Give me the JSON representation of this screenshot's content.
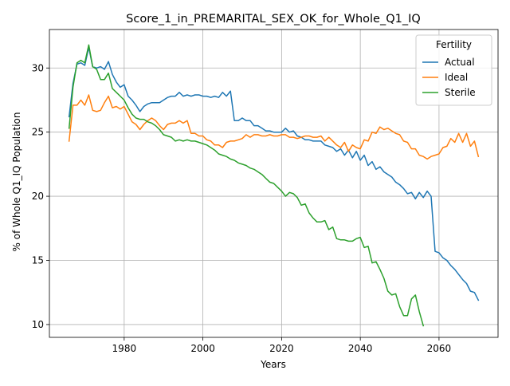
{
  "chart_data": {
    "type": "line",
    "title": "Score_1_in_PREMARITAL_SEX_OK_for_Whole_Q1_IQ",
    "xlabel": "Years",
    "ylabel": "% of Whole Q1_IQ Population",
    "xlim": [
      1961,
      2075
    ],
    "ylim": [
      9,
      33
    ],
    "xticks": [
      1980,
      2000,
      2020,
      2040,
      2060
    ],
    "yticks": [
      10,
      15,
      20,
      25,
      30
    ],
    "grid": true,
    "legend": {
      "title": "Fertility",
      "placement": "top-right"
    },
    "series": [
      {
        "name": "Actual",
        "color": "#1f77b4",
        "points": [
          [
            1966,
            26.2
          ],
          [
            1967,
            28.8
          ],
          [
            1968,
            30.3
          ],
          [
            1969,
            30.4
          ],
          [
            1970,
            30.2
          ],
          [
            1971,
            31.6
          ],
          [
            1972,
            30.1
          ],
          [
            1973,
            30.0
          ],
          [
            1974,
            30.1
          ],
          [
            1975,
            29.9
          ],
          [
            1976,
            30.5
          ],
          [
            1977,
            29.5
          ],
          [
            1978,
            28.9
          ],
          [
            1979,
            28.5
          ],
          [
            1980,
            28.7
          ],
          [
            1981,
            27.8
          ],
          [
            1982,
            27.5
          ],
          [
            1983,
            27.1
          ],
          [
            1984,
            26.6
          ],
          [
            1985,
            27.0
          ],
          [
            1986,
            27.2
          ],
          [
            1987,
            27.3
          ],
          [
            1988,
            27.3
          ],
          [
            1989,
            27.3
          ],
          [
            1990,
            27.5
          ],
          [
            1991,
            27.7
          ],
          [
            1992,
            27.8
          ],
          [
            1993,
            27.8
          ],
          [
            1994,
            28.1
          ],
          [
            1995,
            27.8
          ],
          [
            1996,
            27.9
          ],
          [
            1997,
            27.8
          ],
          [
            1998,
            27.9
          ],
          [
            1999,
            27.9
          ],
          [
            2000,
            27.8
          ],
          [
            2001,
            27.8
          ],
          [
            2002,
            27.7
          ],
          [
            2003,
            27.8
          ],
          [
            2004,
            27.7
          ],
          [
            2005,
            28.1
          ],
          [
            2006,
            27.8
          ],
          [
            2007,
            28.2
          ],
          [
            2008,
            25.9
          ],
          [
            2009,
            25.9
          ],
          [
            2010,
            26.1
          ],
          [
            2011,
            25.9
          ],
          [
            2012,
            25.9
          ],
          [
            2013,
            25.5
          ],
          [
            2014,
            25.5
          ],
          [
            2015,
            25.3
          ],
          [
            2016,
            25.1
          ],
          [
            2017,
            25.1
          ],
          [
            2018,
            25.0
          ],
          [
            2019,
            25.0
          ],
          [
            2020,
            25.0
          ],
          [
            2021,
            25.3
          ],
          [
            2022,
            25.0
          ],
          [
            2023,
            25.1
          ],
          [
            2024,
            24.7
          ],
          [
            2025,
            24.6
          ],
          [
            2026,
            24.4
          ],
          [
            2027,
            24.4
          ],
          [
            2028,
            24.3
          ],
          [
            2029,
            24.3
          ],
          [
            2030,
            24.3
          ],
          [
            2031,
            24.0
          ],
          [
            2032,
            23.9
          ],
          [
            2033,
            23.8
          ],
          [
            2034,
            23.5
          ],
          [
            2035,
            23.7
          ],
          [
            2036,
            23.2
          ],
          [
            2037,
            23.6
          ],
          [
            2038,
            23.0
          ],
          [
            2039,
            23.5
          ],
          [
            2040,
            22.8
          ],
          [
            2041,
            23.2
          ],
          [
            2042,
            22.4
          ],
          [
            2043,
            22.7
          ],
          [
            2044,
            22.1
          ],
          [
            2045,
            22.3
          ],
          [
            2046,
            21.9
          ],
          [
            2047,
            21.7
          ],
          [
            2048,
            21.5
          ],
          [
            2049,
            21.1
          ],
          [
            2050,
            20.9
          ],
          [
            2051,
            20.6
          ],
          [
            2052,
            20.2
          ],
          [
            2053,
            20.3
          ],
          [
            2054,
            19.8
          ],
          [
            2055,
            20.3
          ],
          [
            2056,
            19.9
          ],
          [
            2057,
            20.4
          ],
          [
            2058,
            20.0
          ],
          [
            2059,
            15.7
          ],
          [
            2060,
            15.6
          ],
          [
            2061,
            15.2
          ],
          [
            2062,
            15.0
          ],
          [
            2063,
            14.6
          ],
          [
            2064,
            14.3
          ],
          [
            2065,
            13.9
          ],
          [
            2066,
            13.5
          ],
          [
            2067,
            13.2
          ],
          [
            2068,
            12.6
          ],
          [
            2069,
            12.5
          ],
          [
            2070,
            11.9
          ]
        ]
      },
      {
        "name": "Ideal",
        "color": "#ff7f0e",
        "points": [
          [
            1966,
            24.3
          ],
          [
            1967,
            27.1
          ],
          [
            1968,
            27.1
          ],
          [
            1969,
            27.5
          ],
          [
            1970,
            27.1
          ],
          [
            1971,
            27.9
          ],
          [
            1972,
            26.7
          ],
          [
            1973,
            26.6
          ],
          [
            1974,
            26.7
          ],
          [
            1975,
            27.3
          ],
          [
            1976,
            27.8
          ],
          [
            1977,
            26.9
          ],
          [
            1978,
            27.0
          ],
          [
            1979,
            26.8
          ],
          [
            1980,
            27.0
          ],
          [
            1981,
            26.4
          ],
          [
            1982,
            25.8
          ],
          [
            1983,
            25.6
          ],
          [
            1984,
            25.2
          ],
          [
            1985,
            25.6
          ],
          [
            1986,
            25.9
          ],
          [
            1987,
            26.1
          ],
          [
            1988,
            25.9
          ],
          [
            1989,
            25.5
          ],
          [
            1990,
            25.2
          ],
          [
            1991,
            25.6
          ],
          [
            1992,
            25.7
          ],
          [
            1993,
            25.7
          ],
          [
            1994,
            25.9
          ],
          [
            1995,
            25.7
          ],
          [
            1996,
            25.9
          ],
          [
            1997,
            24.9
          ],
          [
            1998,
            24.9
          ],
          [
            1999,
            24.7
          ],
          [
            2000,
            24.7
          ],
          [
            2001,
            24.4
          ],
          [
            2002,
            24.3
          ],
          [
            2003,
            24.0
          ],
          [
            2004,
            24.0
          ],
          [
            2005,
            23.8
          ],
          [
            2006,
            24.2
          ],
          [
            2007,
            24.3
          ],
          [
            2008,
            24.3
          ],
          [
            2009,
            24.4
          ],
          [
            2010,
            24.5
          ],
          [
            2011,
            24.8
          ],
          [
            2012,
            24.6
          ],
          [
            2013,
            24.8
          ],
          [
            2014,
            24.8
          ],
          [
            2015,
            24.7
          ],
          [
            2016,
            24.7
          ],
          [
            2017,
            24.8
          ],
          [
            2018,
            24.7
          ],
          [
            2019,
            24.7
          ],
          [
            2020,
            24.8
          ],
          [
            2021,
            24.8
          ],
          [
            2022,
            24.6
          ],
          [
            2023,
            24.6
          ],
          [
            2024,
            24.5
          ],
          [
            2025,
            24.6
          ],
          [
            2026,
            24.7
          ],
          [
            2027,
            24.7
          ],
          [
            2028,
            24.6
          ],
          [
            2029,
            24.6
          ],
          [
            2030,
            24.7
          ],
          [
            2031,
            24.3
          ],
          [
            2032,
            24.6
          ],
          [
            2033,
            24.3
          ],
          [
            2034,
            24.0
          ],
          [
            2035,
            23.8
          ],
          [
            2036,
            24.2
          ],
          [
            2037,
            23.5
          ],
          [
            2038,
            24.0
          ],
          [
            2039,
            23.8
          ],
          [
            2040,
            23.7
          ],
          [
            2041,
            24.4
          ],
          [
            2042,
            24.3
          ],
          [
            2043,
            25.0
          ],
          [
            2044,
            24.9
          ],
          [
            2045,
            25.4
          ],
          [
            2046,
            25.2
          ],
          [
            2047,
            25.3
          ],
          [
            2048,
            25.1
          ],
          [
            2049,
            24.9
          ],
          [
            2050,
            24.8
          ],
          [
            2051,
            24.3
          ],
          [
            2052,
            24.2
          ],
          [
            2053,
            23.7
          ],
          [
            2054,
            23.7
          ],
          [
            2055,
            23.2
          ],
          [
            2056,
            23.1
          ],
          [
            2057,
            22.9
          ],
          [
            2058,
            23.1
          ],
          [
            2059,
            23.2
          ],
          [
            2060,
            23.3
          ],
          [
            2061,
            23.8
          ],
          [
            2062,
            23.9
          ],
          [
            2063,
            24.5
          ],
          [
            2064,
            24.2
          ],
          [
            2065,
            24.9
          ],
          [
            2066,
            24.2
          ],
          [
            2067,
            24.9
          ],
          [
            2068,
            23.9
          ],
          [
            2069,
            24.3
          ],
          [
            2070,
            23.1
          ]
        ]
      },
      {
        "name": "Sterile",
        "color": "#2ca02c",
        "points": [
          [
            1966,
            25.3
          ],
          [
            1967,
            28.5
          ],
          [
            1968,
            30.4
          ],
          [
            1969,
            30.6
          ],
          [
            1970,
            30.4
          ],
          [
            1971,
            31.8
          ],
          [
            1972,
            30.1
          ],
          [
            1973,
            29.9
          ],
          [
            1974,
            29.1
          ],
          [
            1975,
            29.1
          ],
          [
            1976,
            29.6
          ],
          [
            1977,
            28.4
          ],
          [
            1978,
            28.1
          ],
          [
            1979,
            27.8
          ],
          [
            1980,
            27.5
          ],
          [
            1981,
            26.9
          ],
          [
            1982,
            26.4
          ],
          [
            1983,
            26.1
          ],
          [
            1984,
            26.0
          ],
          [
            1985,
            26.0
          ],
          [
            1986,
            25.8
          ],
          [
            1987,
            25.7
          ],
          [
            1988,
            25.5
          ],
          [
            1989,
            25.2
          ],
          [
            1990,
            24.8
          ],
          [
            1991,
            24.7
          ],
          [
            1992,
            24.6
          ],
          [
            1993,
            24.3
          ],
          [
            1994,
            24.4
          ],
          [
            1995,
            24.3
          ],
          [
            1996,
            24.4
          ],
          [
            1997,
            24.3
          ],
          [
            1998,
            24.3
          ],
          [
            1999,
            24.2
          ],
          [
            2000,
            24.1
          ],
          [
            2001,
            24.0
          ],
          [
            2002,
            23.8
          ],
          [
            2003,
            23.6
          ],
          [
            2004,
            23.3
          ],
          [
            2005,
            23.2
          ],
          [
            2006,
            23.1
          ],
          [
            2007,
            22.9
          ],
          [
            2008,
            22.8
          ],
          [
            2009,
            22.6
          ],
          [
            2010,
            22.5
          ],
          [
            2011,
            22.4
          ],
          [
            2012,
            22.2
          ],
          [
            2013,
            22.1
          ],
          [
            2014,
            21.9
          ],
          [
            2015,
            21.7
          ],
          [
            2016,
            21.4
          ],
          [
            2017,
            21.1
          ],
          [
            2018,
            21.0
          ],
          [
            2019,
            20.7
          ],
          [
            2020,
            20.4
          ],
          [
            2021,
            20.0
          ],
          [
            2022,
            20.3
          ],
          [
            2023,
            20.2
          ],
          [
            2024,
            19.9
          ],
          [
            2025,
            19.3
          ],
          [
            2026,
            19.4
          ],
          [
            2027,
            18.7
          ],
          [
            2028,
            18.3
          ],
          [
            2029,
            18.0
          ],
          [
            2030,
            18.0
          ],
          [
            2031,
            18.1
          ],
          [
            2032,
            17.4
          ],
          [
            2033,
            17.6
          ],
          [
            2034,
            16.7
          ],
          [
            2035,
            16.6
          ],
          [
            2036,
            16.6
          ],
          [
            2037,
            16.5
          ],
          [
            2038,
            16.5
          ],
          [
            2039,
            16.7
          ],
          [
            2040,
            16.8
          ],
          [
            2041,
            16.0
          ],
          [
            2042,
            16.1
          ],
          [
            2043,
            14.8
          ],
          [
            2044,
            14.9
          ],
          [
            2045,
            14.3
          ],
          [
            2046,
            13.6
          ],
          [
            2047,
            12.6
          ],
          [
            2048,
            12.3
          ],
          [
            2049,
            12.4
          ],
          [
            2050,
            11.4
          ],
          [
            2051,
            10.7
          ],
          [
            2052,
            10.7
          ],
          [
            2053,
            12.0
          ],
          [
            2054,
            12.3
          ],
          [
            2055,
            11.0
          ],
          [
            2056,
            9.9
          ]
        ]
      }
    ]
  }
}
